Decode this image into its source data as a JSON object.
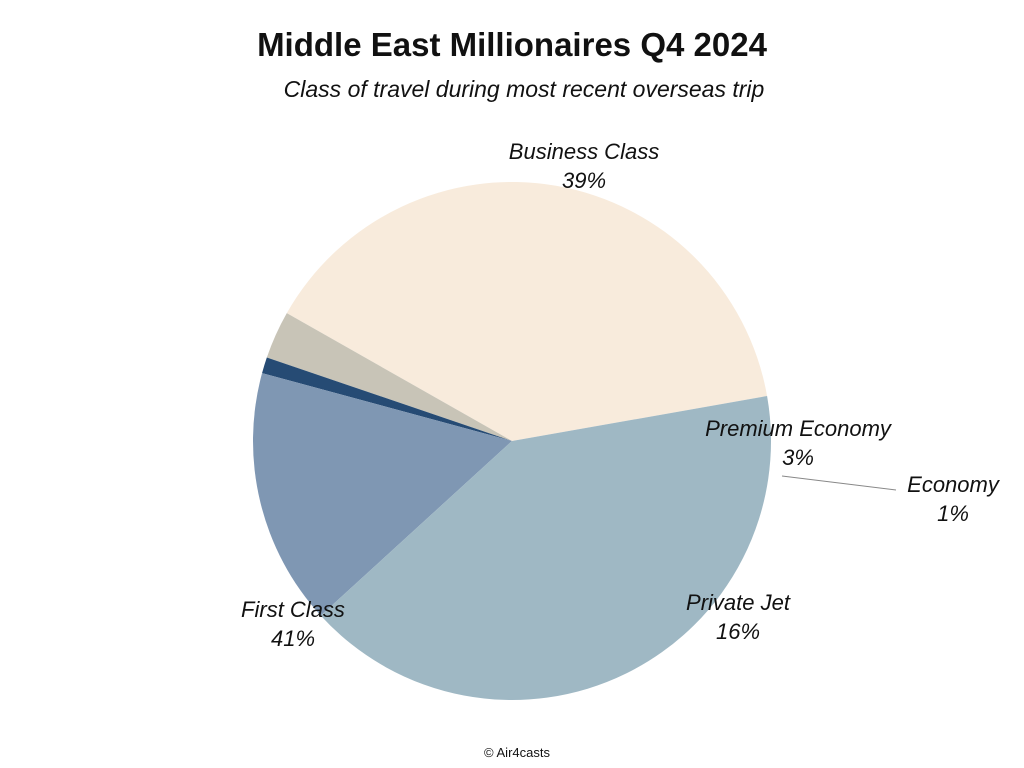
{
  "chart_data": {
    "type": "pie",
    "title": "Middle East Millionaires Q4 2024",
    "subtitle": "Class of travel during most recent overseas trip",
    "source": "© Air4casts",
    "slices": [
      {
        "label": "Business Class",
        "value": 39,
        "value_label": "39%",
        "color": "#F8EBDC"
      },
      {
        "label": "Premium Economy",
        "value": 3,
        "value_label": "3%",
        "color": "#C8C4B7"
      },
      {
        "label": "Economy",
        "value": 1,
        "value_label": "1%",
        "color": "#264B74"
      },
      {
        "label": "Private Jet",
        "value": 16,
        "value_label": "16%",
        "color": "#7F97B3"
      },
      {
        "label": "First Class",
        "value": 41,
        "value_label": "41%",
        "color": "#9FB8C4"
      }
    ],
    "legend": "none",
    "labels": "outside slices, category name above percentage"
  }
}
